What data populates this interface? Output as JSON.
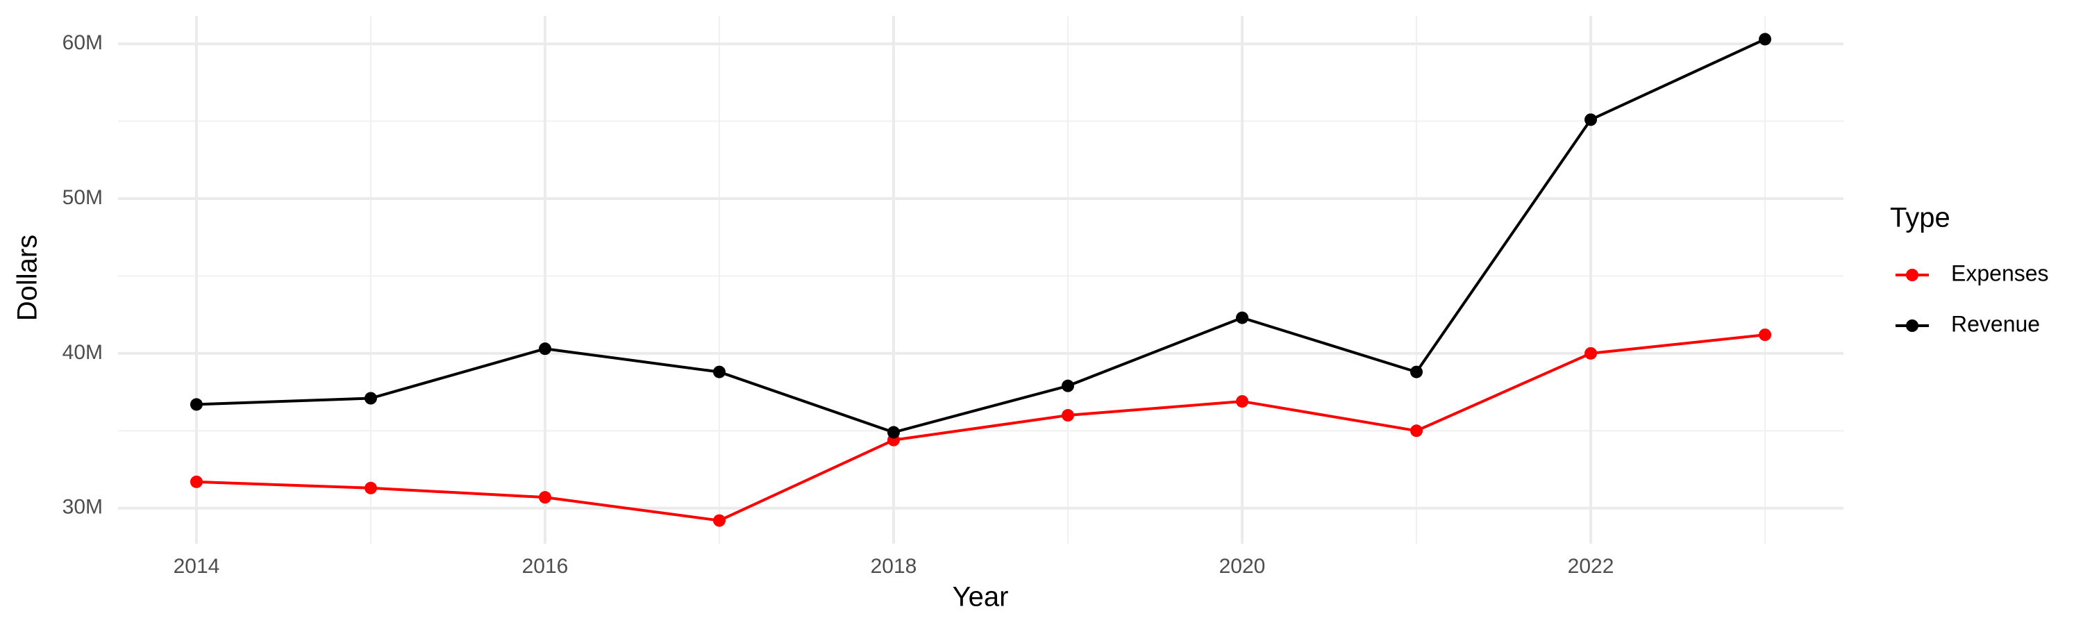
{
  "chart_data": {
    "type": "line",
    "x_label": "Year",
    "y_label": "Dollars",
    "legend_title": "Type",
    "x": [
      2014,
      2015,
      2016,
      2017,
      2018,
      2019,
      2020,
      2021,
      2022,
      2023
    ],
    "series": [
      {
        "name": "Expenses",
        "color": "#ff0000",
        "values": [
          31700000,
          31300000,
          30700000,
          29200000,
          34400000,
          36000000,
          36900000,
          35000000,
          40000000,
          41200000
        ]
      },
      {
        "name": "Revenue",
        "color": "#000000",
        "values": [
          36700000,
          37100000,
          40300000,
          38800000,
          34900000,
          37900000,
          42300000,
          38800000,
          55100000,
          60300000
        ]
      }
    ],
    "xlim": [
      2013.55,
      2023.45
    ],
    "xticks": [
      2014,
      2016,
      2018,
      2020,
      2022
    ],
    "ylim": [
      27700000,
      61800000
    ],
    "yticks": [
      {
        "value": 30000000,
        "label": "30M"
      },
      {
        "value": 40000000,
        "label": "40M"
      },
      {
        "value": 50000000,
        "label": "50M"
      },
      {
        "value": 60000000,
        "label": "60M"
      }
    ],
    "grid": true,
    "legend": "right"
  }
}
